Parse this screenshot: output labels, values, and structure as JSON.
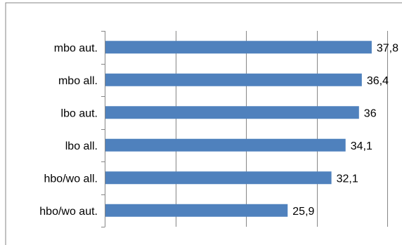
{
  "chart_data": {
    "type": "bar",
    "orientation": "horizontal",
    "categories": [
      "mbo aut.",
      "mbo all.",
      "lbo aut.",
      "lbo all.",
      "hbo/wo all.",
      "hbo/wo aut."
    ],
    "values": [
      37.8,
      36.4,
      36,
      34.1,
      32.1,
      25.9
    ],
    "value_labels": [
      "37,8",
      "36,4",
      "36",
      "34,1",
      "32,1",
      "25,9"
    ],
    "title": "",
    "xlabel": "",
    "ylabel": "",
    "xlim": [
      0,
      40
    ],
    "grid": "vertical",
    "bar_color": "#4f81bd",
    "grid_color": "#868686",
    "legend": "none"
  }
}
